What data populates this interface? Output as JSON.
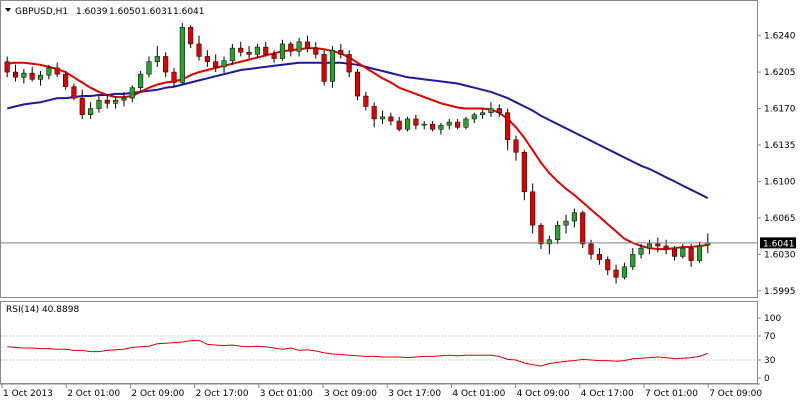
{
  "chart_data": [
    {
      "type": "candlestick",
      "header": {
        "symbol": "GBPUSD,H1",
        "open": "1.6039",
        "high": "1.6050",
        "low": "1.6031",
        "close": "1.6041"
      },
      "current_price_label": "1.6041",
      "current_price": 1.6041,
      "y_ticks": [
        "1.6240",
        "1.6205",
        "1.6170",
        "1.6135",
        "1.6100",
        "1.6065",
        "1.6030",
        "1.5995"
      ],
      "ylim": [
        1.599,
        1.6255
      ],
      "x_ticks": [
        "1 Oct 2013",
        "2 Oct 01:00",
        "2 Oct 09:00",
        "2 Oct 17:00",
        "3 Oct 01:00",
        "3 Oct 09:00",
        "3 Oct 17:00",
        "4 Oct 01:00",
        "4 Oct 09:00",
        "4 Oct 17:00",
        "7 Oct 01:00",
        "7 Oct 09:00"
      ],
      "colors": {
        "bull": "#2ca02c",
        "bear": "#e00000",
        "ma_fast": "#e00000",
        "ma_slow": "#1a1aa0",
        "grid": "#cccccc"
      },
      "candles": [
        [
          1.6215,
          1.622,
          1.62,
          1.6205
        ],
        [
          1.6205,
          1.6212,
          1.6196,
          1.62
        ],
        [
          1.62,
          1.6208,
          1.6194,
          1.6204
        ],
        [
          1.6204,
          1.621,
          1.6196,
          1.6198
        ],
        [
          1.6198,
          1.6206,
          1.6192,
          1.6202
        ],
        [
          1.6202,
          1.6212,
          1.6198,
          1.6209
        ],
        [
          1.6209,
          1.6214,
          1.62,
          1.6203
        ],
        [
          1.6203,
          1.6206,
          1.6188,
          1.6191
        ],
        [
          1.6191,
          1.6194,
          1.6178,
          1.618
        ],
        [
          1.618,
          1.6188,
          1.616,
          1.6164
        ],
        [
          1.6164,
          1.6176,
          1.616,
          1.617
        ],
        [
          1.617,
          1.6182,
          1.6166,
          1.6178
        ],
        [
          1.6178,
          1.6184,
          1.617,
          1.6175
        ],
        [
          1.6175,
          1.6182,
          1.617,
          1.6178
        ],
        [
          1.6178,
          1.6186,
          1.6172,
          1.618
        ],
        [
          1.618,
          1.6192,
          1.6176,
          1.619
        ],
        [
          1.619,
          1.6206,
          1.6186,
          1.6203
        ],
        [
          1.6203,
          1.622,
          1.62,
          1.6215
        ],
        [
          1.6215,
          1.623,
          1.621,
          1.622
        ],
        [
          1.622,
          1.6224,
          1.62,
          1.6205
        ],
        [
          1.6205,
          1.6209,
          1.619,
          1.6195
        ],
        [
          1.6195,
          1.6252,
          1.6193,
          1.6248
        ],
        [
          1.6248,
          1.625,
          1.6228,
          1.6232
        ],
        [
          1.6232,
          1.624,
          1.6216,
          1.622
        ],
        [
          1.622,
          1.6226,
          1.621,
          1.6215
        ],
        [
          1.6215,
          1.6222,
          1.6205,
          1.621
        ],
        [
          1.621,
          1.622,
          1.6204,
          1.6216
        ],
        [
          1.6216,
          1.6232,
          1.6212,
          1.6228
        ],
        [
          1.6228,
          1.6234,
          1.622,
          1.6224
        ],
        [
          1.6224,
          1.623,
          1.6218,
          1.6222
        ],
        [
          1.6222,
          1.6232,
          1.6218,
          1.6229
        ],
        [
          1.6229,
          1.6234,
          1.622,
          1.6222
        ],
        [
          1.6222,
          1.6226,
          1.6214,
          1.6218
        ],
        [
          1.6218,
          1.6236,
          1.6216,
          1.6232
        ],
        [
          1.6232,
          1.6234,
          1.622,
          1.6225
        ],
        [
          1.6225,
          1.6238,
          1.622,
          1.6234
        ],
        [
          1.6234,
          1.624,
          1.6224,
          1.6228
        ],
        [
          1.6228,
          1.6234,
          1.6218,
          1.6222
        ],
        [
          1.6222,
          1.6226,
          1.6192,
          1.6196
        ],
        [
          1.6196,
          1.623,
          1.619,
          1.6226
        ],
        [
          1.6226,
          1.6232,
          1.6218,
          1.6222
        ],
        [
          1.6222,
          1.6226,
          1.62,
          1.6205
        ],
        [
          1.6205,
          1.6208,
          1.6178,
          1.6182
        ],
        [
          1.6182,
          1.6186,
          1.6168,
          1.6172
        ],
        [
          1.6172,
          1.6176,
          1.6152,
          1.616
        ],
        [
          1.616,
          1.6168,
          1.6155,
          1.6162
        ],
        [
          1.6162,
          1.6166,
          1.6154,
          1.6158
        ],
        [
          1.6158,
          1.6162,
          1.6148,
          1.615
        ],
        [
          1.615,
          1.6162,
          1.6148,
          1.616
        ],
        [
          1.616,
          1.6164,
          1.615,
          1.6154
        ],
        [
          1.6154,
          1.6158,
          1.615,
          1.6155
        ],
        [
          1.6155,
          1.6158,
          1.6148,
          1.615
        ],
        [
          1.615,
          1.6156,
          1.6145,
          1.6154
        ],
        [
          1.6154,
          1.616,
          1.615,
          1.6157
        ],
        [
          1.6157,
          1.616,
          1.615,
          1.6152
        ],
        [
          1.6152,
          1.6162,
          1.615,
          1.616
        ],
        [
          1.616,
          1.6166,
          1.6156,
          1.6164
        ],
        [
          1.6164,
          1.617,
          1.616,
          1.6166
        ],
        [
          1.6166,
          1.6176,
          1.6162,
          1.617
        ],
        [
          1.617,
          1.6174,
          1.6162,
          1.6166
        ],
        [
          1.6166,
          1.617,
          1.613,
          1.614
        ],
        [
          1.614,
          1.6144,
          1.612,
          1.6128
        ],
        [
          1.6128,
          1.613,
          1.6082,
          1.609
        ],
        [
          1.609,
          1.6098,
          1.605,
          1.6058
        ],
        [
          1.6058,
          1.606,
          1.6035,
          1.604
        ],
        [
          1.604,
          1.6048,
          1.603,
          1.6044
        ],
        [
          1.6044,
          1.6062,
          1.604,
          1.6058
        ],
        [
          1.6058,
          1.6068,
          1.605,
          1.6062
        ],
        [
          1.6062,
          1.6074,
          1.6056,
          1.607
        ],
        [
          1.607,
          1.6072,
          1.6036,
          1.604
        ],
        [
          1.604,
          1.6044,
          1.6025,
          1.603
        ],
        [
          1.603,
          1.6036,
          1.602,
          1.6025
        ],
        [
          1.6025,
          1.6028,
          1.601,
          1.6015
        ],
        [
          1.6015,
          1.602,
          1.6002,
          1.6008
        ],
        [
          1.6008,
          1.6022,
          1.6006,
          1.6018
        ],
        [
          1.6018,
          1.6036,
          1.6015,
          1.603
        ],
        [
          1.603,
          1.604,
          1.6026,
          1.6036
        ],
        [
          1.6036,
          1.6044,
          1.603,
          1.604
        ],
        [
          1.604,
          1.6046,
          1.6032,
          1.6038
        ],
        [
          1.6038,
          1.6044,
          1.603,
          1.6035
        ],
        [
          1.6035,
          1.6038,
          1.6024,
          1.6028
        ],
        [
          1.6028,
          1.604,
          1.6026,
          1.6036
        ],
        [
          1.6036,
          1.604,
          1.6018,
          1.6024
        ],
        [
          1.6024,
          1.6042,
          1.6022,
          1.6038
        ],
        [
          1.6039,
          1.605,
          1.6031,
          1.6041
        ]
      ],
      "ma_fast": [
        1.6213,
        1.6214,
        1.6214,
        1.6213,
        1.6212,
        1.621,
        1.6208,
        1.6205,
        1.62,
        1.6195,
        1.619,
        1.6186,
        1.6183,
        1.6181,
        1.6181,
        1.6182,
        1.6186,
        1.619,
        1.6193,
        1.6195,
        1.6196,
        1.6198,
        1.6202,
        1.6205,
        1.6207,
        1.6209,
        1.6211,
        1.6213,
        1.6215,
        1.6217,
        1.6219,
        1.6221,
        1.6223,
        1.6225,
        1.6226,
        1.6227,
        1.6228,
        1.6228,
        1.6227,
        1.6225,
        1.6223,
        1.6219,
        1.6214,
        1.6209,
        1.6204,
        1.6199,
        1.6195,
        1.619,
        1.6187,
        1.6184,
        1.6181,
        1.6178,
        1.6175,
        1.6173,
        1.6171,
        1.617,
        1.617,
        1.617,
        1.6169,
        1.6166,
        1.616,
        1.6152,
        1.6142,
        1.613,
        1.6118,
        1.6108,
        1.61,
        1.6093,
        1.6087,
        1.608,
        1.6073,
        1.6066,
        1.6059,
        1.6052,
        1.6045,
        1.6041,
        1.6038,
        1.6036,
        1.6035,
        1.6035,
        1.6036,
        1.6037,
        1.6037,
        1.6038,
        1.6039
      ],
      "ma_slow": [
        1.617,
        1.6172,
        1.6174,
        1.6175,
        1.6176,
        1.6178,
        1.618,
        1.618,
        1.6181,
        1.6182,
        1.6182,
        1.6183,
        1.6183,
        1.6184,
        1.6184,
        1.6185,
        1.6186,
        1.6187,
        1.6188,
        1.619,
        1.6191,
        1.6193,
        1.6195,
        1.6197,
        1.6199,
        1.6201,
        1.6203,
        1.6205,
        1.6207,
        1.6208,
        1.6209,
        1.621,
        1.6211,
        1.6212,
        1.6213,
        1.6214,
        1.6214,
        1.6214,
        1.6214,
        1.6214,
        1.6214,
        1.6213,
        1.6212,
        1.621,
        1.6208,
        1.6206,
        1.6204,
        1.6202,
        1.62,
        1.6199,
        1.6198,
        1.6197,
        1.6196,
        1.6195,
        1.6194,
        1.6192,
        1.619,
        1.6188,
        1.6186,
        1.6183,
        1.618,
        1.6176,
        1.6172,
        1.6168,
        1.6163,
        1.6159,
        1.6155,
        1.6151,
        1.6147,
        1.6143,
        1.6139,
        1.6135,
        1.6131,
        1.6127,
        1.6123,
        1.6119,
        1.6115,
        1.6112,
        1.6108,
        1.6104,
        1.61,
        1.6096,
        1.6092,
        1.6088,
        1.6084
      ]
    },
    {
      "type": "line",
      "title": "RSI(14) 40.8898",
      "y_ticks": [
        "100",
        "70",
        "30",
        "0"
      ],
      "levels": [
        70,
        30
      ],
      "ylim": [
        0,
        100
      ],
      "colors": {
        "line": "#e00000",
        "level": "#aaaaaa"
      },
      "values": [
        52,
        51,
        50,
        50,
        49,
        49,
        48,
        48,
        46,
        46,
        44,
        44,
        46,
        47,
        48,
        51,
        52,
        53,
        57,
        58,
        59,
        60,
        62,
        63,
        56,
        55,
        54,
        55,
        53,
        52,
        53,
        52,
        50,
        48,
        50,
        46,
        47,
        45,
        42,
        40,
        39,
        38,
        37,
        36,
        36,
        35,
        35,
        35,
        34,
        35,
        36,
        36,
        37,
        38,
        37,
        38,
        38,
        38,
        38,
        36,
        31,
        30,
        25,
        22,
        20,
        24,
        26,
        28,
        29,
        31,
        30,
        29,
        29,
        28,
        29,
        32,
        33,
        34,
        35,
        34,
        32,
        33,
        34,
        36,
        41
      ]
    }
  ]
}
